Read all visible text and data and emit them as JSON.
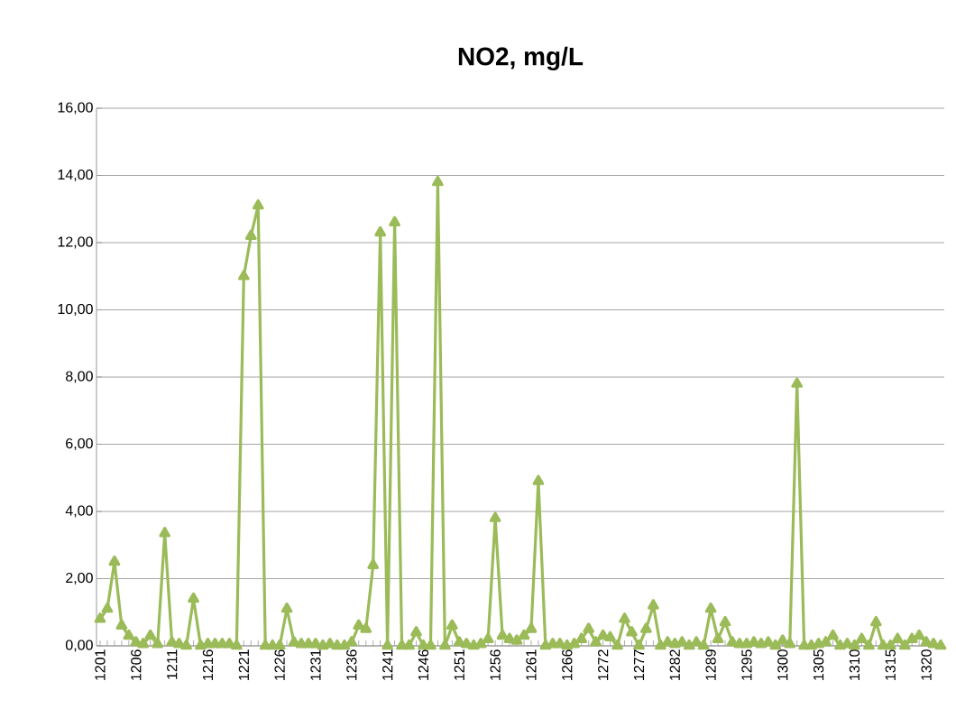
{
  "chart_data": {
    "type": "line",
    "title": "NO2, mg/L",
    "categories": [
      "1201",
      null,
      null,
      null,
      null,
      "1206",
      null,
      null,
      null,
      null,
      "1211",
      null,
      null,
      null,
      null,
      "1216",
      null,
      null,
      null,
      null,
      "1221",
      null,
      null,
      null,
      null,
      "1226",
      null,
      null,
      null,
      null,
      "1231",
      null,
      null,
      null,
      null,
      "1236",
      null,
      null,
      null,
      null,
      "1241",
      null,
      null,
      null,
      null,
      "1246",
      null,
      null,
      null,
      null,
      "1251",
      null,
      null,
      null,
      null,
      "1256",
      null,
      null,
      null,
      null,
      "1261",
      null,
      null,
      null,
      null,
      "1266",
      null,
      null,
      null,
      null,
      "1272",
      null,
      null,
      null,
      null,
      "1277",
      null,
      null,
      null,
      null,
      "1282",
      null,
      null,
      null,
      null,
      "1289",
      null,
      null,
      null,
      null,
      "1295",
      null,
      null,
      null,
      null,
      "1300",
      null,
      null,
      null,
      null,
      "1305",
      null,
      null,
      null,
      null,
      "1310",
      null,
      null,
      null,
      null,
      "1315",
      null,
      null,
      null,
      null,
      "1320",
      null,
      null
    ],
    "series": [
      {
        "color": "#9bbb59",
        "values": [
          0.8,
          1.1,
          2.5,
          0.6,
          0.3,
          0.1,
          0.05,
          0.3,
          0.05,
          3.35,
          0.1,
          0.05,
          0,
          1.4,
          0,
          0.05,
          0.05,
          0.05,
          0.05,
          0,
          11.0,
          12.2,
          13.1,
          0,
          0,
          0,
          1.1,
          0.1,
          0.05,
          0.05,
          0.05,
          0,
          0.05,
          0,
          0,
          0.1,
          0.6,
          0.5,
          2.4,
          12.3,
          0,
          12.6,
          0,
          0,
          0.4,
          0,
          0,
          13.8,
          0,
          0.6,
          0.1,
          0.05,
          0,
          0.05,
          0.2,
          3.8,
          0.3,
          0.2,
          0.15,
          0.3,
          0.5,
          4.9,
          0,
          0.05,
          0.05,
          0,
          0.05,
          0.2,
          0.5,
          0.1,
          0.3,
          0.25,
          0,
          0.8,
          0.4,
          0,
          0.5,
          1.2,
          0,
          0.1,
          0.05,
          0.1,
          0,
          0.1,
          0,
          1.1,
          0.2,
          0.7,
          0.1,
          0.05,
          0.05,
          0.1,
          0.05,
          0.1,
          0,
          0.15,
          0.05,
          7.8,
          0,
          0,
          0.05,
          0.1,
          0.3,
          0,
          0.05,
          0,
          0.2,
          0,
          0.7,
          0,
          0,
          0.2,
          0,
          0.2,
          0.3,
          0.1,
          0.05,
          0
        ]
      }
    ],
    "ylim": [
      0,
      16
    ],
    "yticks": [
      {
        "value": 0,
        "label": "0,00"
      },
      {
        "value": 2,
        "label": "2,00"
      },
      {
        "value": 4,
        "label": "4,00"
      },
      {
        "value": 6,
        "label": "6,00"
      },
      {
        "value": 8,
        "label": "8,00"
      },
      {
        "value": 10,
        "label": "10,00"
      },
      {
        "value": 12,
        "label": "12,00"
      },
      {
        "value": 14,
        "label": "14,00"
      },
      {
        "value": 16,
        "label": "16,00"
      }
    ],
    "grid": "y",
    "marker": "triangle",
    "line_style": "solid"
  }
}
